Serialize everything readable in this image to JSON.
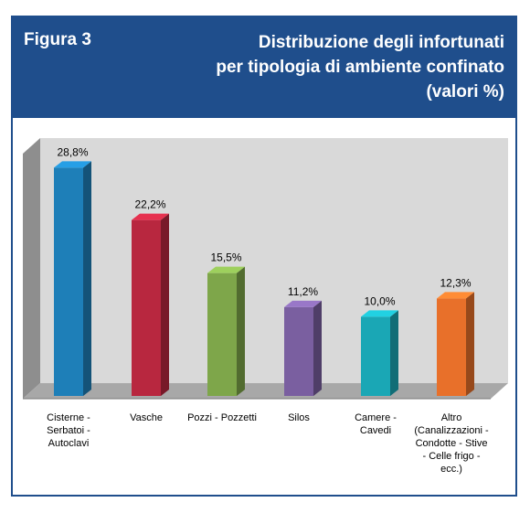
{
  "header": {
    "figure_label": "Figura 3",
    "title": "Distribuzione degli infortunati\nper tipologia di ambiente confinato\n(valori %)"
  },
  "colors": {
    "header_bg": "#1f4e8c",
    "bars": [
      "#1e7fb8",
      "#b8273f",
      "#7ea64a",
      "#7a5fa0",
      "#1aa7b5",
      "#e8702a"
    ]
  },
  "chart_data": {
    "type": "bar",
    "title": "Distribuzione degli infortunati per tipologia di ambiente confinato (valori %)",
    "categories": [
      "Cisterne -\nSerbatoi -\nAutoclavi",
      "Vasche",
      "Pozzi - Pozzetti",
      "Silos",
      "Camere -\nCavedi",
      "Altro\n(Canalizzazioni -\nCondotte - Stive\n- Celle frigo -\necc.)"
    ],
    "values": [
      28.8,
      22.2,
      15.5,
      11.2,
      10.0,
      12.3
    ],
    "data_labels": [
      "28,8%",
      "22,2%",
      "15,5%",
      "11,2%",
      "10,0%",
      "12,3%"
    ],
    "ylim": [
      0,
      30
    ],
    "grid": false,
    "style": "3d-bar"
  }
}
